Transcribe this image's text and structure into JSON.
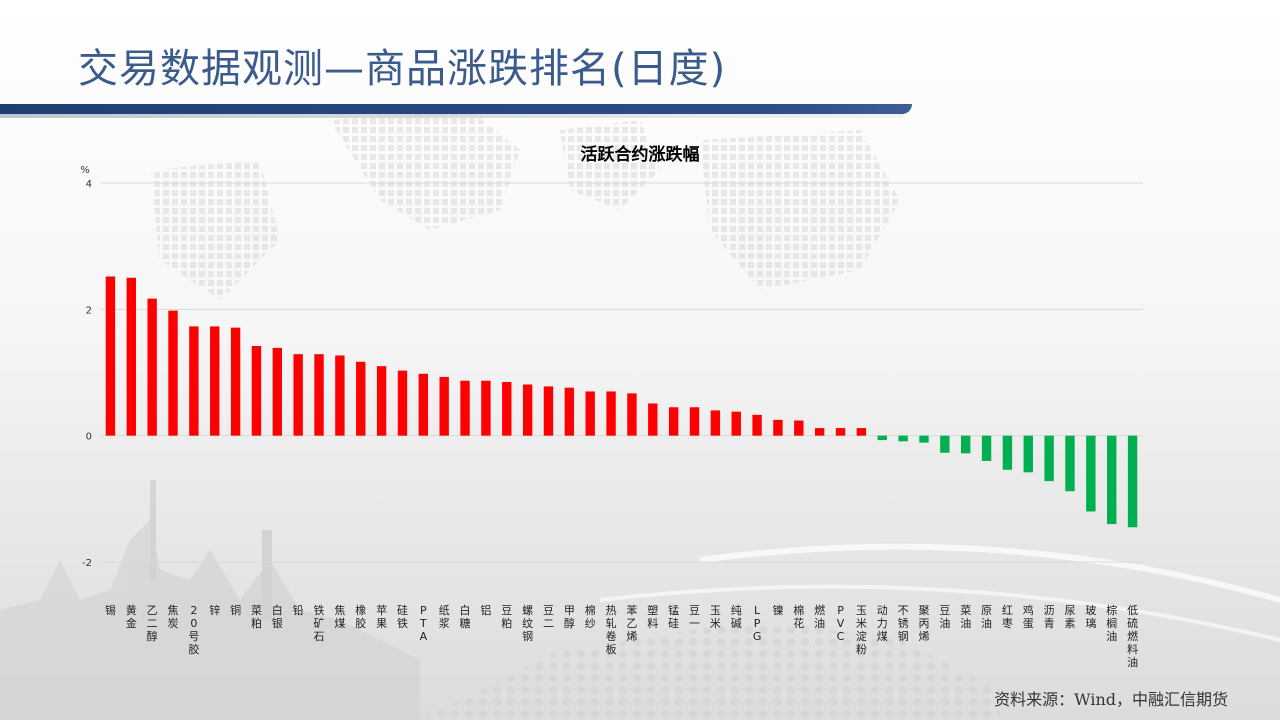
{
  "slide": {
    "title": "交易数据观测—商品涨跌排名(日度)",
    "source": "资料来源：Wind，中融汇信期货"
  },
  "colors": {
    "up": "#ff0000",
    "down": "#00b050",
    "grid": "#d9d9d9",
    "title": "#3b5b8c"
  },
  "chart_data": {
    "type": "bar",
    "title": "活跃合约涨跌幅",
    "ylabel": "%",
    "ylim": [
      -2,
      4
    ],
    "yticks": [
      -2,
      0,
      2,
      4
    ],
    "grid": true,
    "legend": "none",
    "categories": [
      "锡",
      "黄金",
      "乙二醇",
      "焦炭",
      "20号胶",
      "锌",
      "铜",
      "菜粕",
      "白银",
      "铅",
      "铁矿石",
      "焦煤",
      "橡胶",
      "苹果",
      "硅铁",
      "PTA",
      "纸浆",
      "白糖",
      "铝",
      "豆粕",
      "螺纹钢",
      "豆二",
      "甲醇",
      "棉纱",
      "热轧卷板",
      "苯乙烯",
      "塑料",
      "锰硅",
      "豆一",
      "玉米",
      "纯碱",
      "LPG",
      "镍",
      "棉花",
      "燃油",
      "PVC",
      "玉米淀粉",
      "动力煤",
      "不锈钢",
      "聚丙烯",
      "豆油",
      "菜油",
      "原油",
      "红枣",
      "鸡蛋",
      "沥青",
      "尿素",
      "玻璃",
      "棕榈油",
      "低硫燃料油"
    ],
    "values": [
      2.52,
      2.5,
      2.17,
      1.98,
      1.73,
      1.73,
      1.71,
      1.42,
      1.39,
      1.29,
      1.29,
      1.27,
      1.17,
      1.1,
      1.03,
      0.98,
      0.93,
      0.87,
      0.87,
      0.85,
      0.81,
      0.78,
      0.76,
      0.7,
      0.7,
      0.67,
      0.51,
      0.45,
      0.45,
      0.4,
      0.38,
      0.33,
      0.25,
      0.24,
      0.12,
      0.12,
      0.12,
      -0.07,
      -0.09,
      -0.11,
      -0.27,
      -0.28,
      -0.4,
      -0.54,
      -0.58,
      -0.72,
      -0.88,
      -1.2,
      -1.4,
      null
    ]
  }
}
